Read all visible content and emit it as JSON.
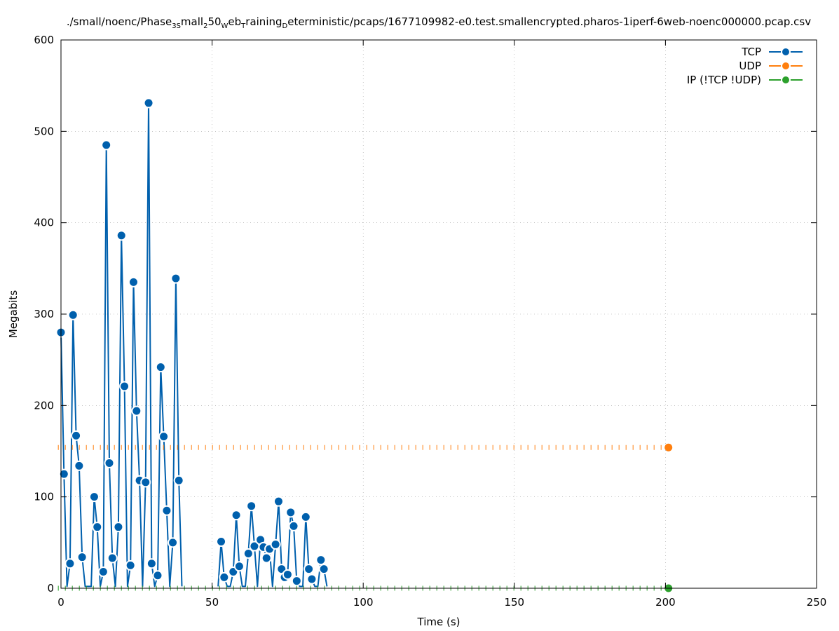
{
  "chart_data": {
    "type": "line",
    "title": {
      "segments": [
        {
          "t": "./small/noenc/Phase",
          "sub": false
        },
        {
          "t": "3S",
          "sub": true
        },
        {
          "t": "mall",
          "sub": false
        },
        {
          "t": "2",
          "sub": true
        },
        {
          "t": "50",
          "sub": false
        },
        {
          "t": "W",
          "sub": true
        },
        {
          "t": "eb",
          "sub": false
        },
        {
          "t": "T",
          "sub": true
        },
        {
          "t": "raining",
          "sub": false
        },
        {
          "t": "D",
          "sub": true
        },
        {
          "t": "eterministic/pcaps/1677109982-e0.test.smallencrypted.pharos-1iperf-6web-noenc000000.pcap.csv",
          "sub": false
        }
      ]
    },
    "xlabel": "Time (s)",
    "ylabel": "Megabits",
    "xlim": [
      0,
      250
    ],
    "ylim": [
      0,
      600
    ],
    "xticks": [
      0,
      50,
      100,
      150,
      200,
      250
    ],
    "yticks": [
      0,
      100,
      200,
      300,
      400,
      500,
      600
    ],
    "grid": true,
    "legend_position": "top-right",
    "series": [
      {
        "name": "TCP",
        "color": "#0060ad",
        "style": "line-points",
        "points": [
          [
            0,
            280
          ],
          [
            1,
            125
          ],
          [
            2,
            2
          ],
          [
            3,
            27
          ],
          [
            4,
            299
          ],
          [
            5,
            167
          ],
          [
            6,
            134
          ],
          [
            7,
            34
          ],
          [
            8,
            2
          ],
          [
            9,
            2
          ],
          [
            10,
            2
          ],
          [
            11,
            100
          ],
          [
            12,
            67
          ],
          [
            13,
            2
          ],
          [
            14,
            18
          ],
          [
            15,
            485
          ],
          [
            16,
            137
          ],
          [
            17,
            33
          ],
          [
            18,
            2
          ],
          [
            19,
            67
          ],
          [
            20,
            386
          ],
          [
            21,
            221
          ],
          [
            22,
            2
          ],
          [
            23,
            25
          ],
          [
            24,
            335
          ],
          [
            25,
            194
          ],
          [
            26,
            118
          ],
          [
            27,
            2
          ],
          [
            28,
            116
          ],
          [
            29,
            531
          ],
          [
            30,
            27
          ],
          [
            31,
            2
          ],
          [
            32,
            14
          ],
          [
            33,
            242
          ],
          [
            34,
            166
          ],
          [
            35,
            85
          ],
          [
            36,
            2
          ],
          [
            37,
            50
          ],
          [
            38,
            339
          ],
          [
            39,
            118
          ],
          [
            40,
            2
          ],
          [
            52,
            2
          ],
          [
            53,
            51
          ],
          [
            54,
            12
          ],
          [
            55,
            2
          ],
          [
            56,
            2
          ],
          [
            57,
            18
          ],
          [
            58,
            80
          ],
          [
            59,
            24
          ],
          [
            60,
            2
          ],
          [
            61,
            2
          ],
          [
            62,
            38
          ],
          [
            63,
            90
          ],
          [
            64,
            46
          ],
          [
            65,
            2
          ],
          [
            66,
            53
          ],
          [
            67,
            45
          ],
          [
            68,
            33
          ],
          [
            69,
            43
          ],
          [
            70,
            2
          ],
          [
            71,
            48
          ],
          [
            72,
            95
          ],
          [
            73,
            21
          ],
          [
            74,
            12
          ],
          [
            75,
            15
          ],
          [
            76,
            83
          ],
          [
            77,
            68
          ],
          [
            78,
            8
          ],
          [
            79,
            2
          ],
          [
            80,
            2
          ],
          [
            81,
            78
          ],
          [
            82,
            21
          ],
          [
            83,
            10
          ],
          [
            84,
            2
          ],
          [
            85,
            2
          ],
          [
            86,
            31
          ],
          [
            87,
            21
          ],
          [
            88,
            2
          ]
        ]
      },
      {
        "name": "UDP",
        "color": "#ff7f0e",
        "style": "dense-dashed-points",
        "points": [
          [
            -1,
            154
          ],
          [
            201,
            154
          ]
        ],
        "marker_at": [
          201,
          154
        ]
      },
      {
        "name": "IP (!TCP  !UDP)",
        "color": "#2ca02c",
        "style": "dense-dashed-points",
        "points": [
          [
            -1,
            0
          ],
          [
            201,
            0
          ]
        ],
        "marker_at": [
          201,
          0
        ]
      }
    ]
  }
}
